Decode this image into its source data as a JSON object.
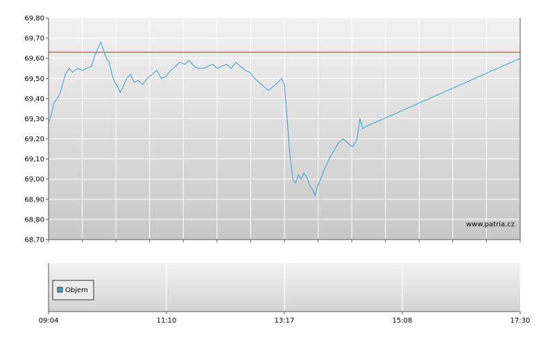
{
  "chart_data": [
    {
      "type": "line",
      "title": "",
      "xlabel": "",
      "ylabel": "",
      "ylim": [
        68.7,
        69.8
      ],
      "xlim": [
        "09:04",
        "17:30"
      ],
      "y_ticks": [
        "69,80",
        "69,70",
        "69,60",
        "69,50",
        "69,40",
        "69,30",
        "69,20",
        "69,10",
        "69,00",
        "68,90",
        "68,80",
        "68,70"
      ],
      "y_tick_values": [
        69.8,
        69.7,
        69.6,
        69.5,
        69.4,
        69.3,
        69.2,
        69.1,
        69.0,
        68.9,
        68.8,
        68.7
      ],
      "reference_line": {
        "value": 69.63,
        "color": "#e05050"
      },
      "watermark": "www.patria.cz",
      "grid": true,
      "series": [
        {
          "color": "#4aa3cc",
          "points": [
            [
              "09:04",
              69.28
            ],
            [
              "09:07",
              69.32
            ],
            [
              "09:10",
              69.38
            ],
            [
              "09:13",
              69.4
            ],
            [
              "09:16",
              69.42
            ],
            [
              "09:19",
              69.47
            ],
            [
              "09:22",
              69.52
            ],
            [
              "09:26",
              69.55
            ],
            [
              "09:30",
              69.53
            ],
            [
              "09:35",
              69.55
            ],
            [
              "09:40",
              69.54
            ],
            [
              "09:45",
              69.55
            ],
            [
              "09:50",
              69.56
            ],
            [
              "09:54",
              69.62
            ],
            [
              "09:58",
              69.66
            ],
            [
              "10:00",
              69.68
            ],
            [
              "10:03",
              69.64
            ],
            [
              "10:06",
              69.6
            ],
            [
              "10:09",
              69.58
            ],
            [
              "10:12",
              69.52
            ],
            [
              "10:15",
              69.48
            ],
            [
              "10:18",
              69.46
            ],
            [
              "10:21",
              69.43
            ],
            [
              "10:24",
              69.46
            ],
            [
              "10:28",
              69.5
            ],
            [
              "10:32",
              69.52
            ],
            [
              "10:36",
              69.48
            ],
            [
              "10:40",
              69.49
            ],
            [
              "10:45",
              69.47
            ],
            [
              "10:50",
              69.5
            ],
            [
              "10:55",
              69.52
            ],
            [
              "11:00",
              69.54
            ],
            [
              "11:05",
              69.5
            ],
            [
              "11:10",
              69.51
            ],
            [
              "11:15",
              69.54
            ],
            [
              "11:20",
              69.56
            ],
            [
              "11:25",
              69.58
            ],
            [
              "11:30",
              69.57
            ],
            [
              "11:35",
              69.59
            ],
            [
              "11:40",
              69.56
            ],
            [
              "11:45",
              69.55
            ],
            [
              "11:50",
              69.55
            ],
            [
              "11:55",
              69.56
            ],
            [
              "12:00",
              69.57
            ],
            [
              "12:05",
              69.55
            ],
            [
              "12:10",
              69.56
            ],
            [
              "12:15",
              69.57
            ],
            [
              "12:20",
              69.55
            ],
            [
              "12:25",
              69.58
            ],
            [
              "12:30",
              69.56
            ],
            [
              "12:35",
              69.54
            ],
            [
              "12:40",
              69.53
            ],
            [
              "12:45",
              69.5
            ],
            [
              "12:50",
              69.48
            ],
            [
              "12:55",
              69.46
            ],
            [
              "13:00",
              69.44
            ],
            [
              "13:05",
              69.46
            ],
            [
              "13:10",
              69.48
            ],
            [
              "13:14",
              69.5
            ],
            [
              "13:17",
              69.47
            ],
            [
              "13:20",
              69.3
            ],
            [
              "13:23",
              69.12
            ],
            [
              "13:26",
              69.0
            ],
            [
              "13:29",
              68.98
            ],
            [
              "13:32",
              69.02
            ],
            [
              "13:35",
              69.0
            ],
            [
              "13:38",
              69.03
            ],
            [
              "13:41",
              69.01
            ],
            [
              "13:44",
              68.97
            ],
            [
              "13:47",
              68.95
            ],
            [
              "13:50",
              68.92
            ],
            [
              "13:53",
              68.97
            ],
            [
              "13:56",
              69.0
            ],
            [
              "14:00",
              69.05
            ],
            [
              "14:05",
              69.1
            ],
            [
              "14:10",
              69.14
            ],
            [
              "14:15",
              69.18
            ],
            [
              "14:20",
              69.2
            ],
            [
              "14:25",
              69.18
            ],
            [
              "14:30",
              69.16
            ],
            [
              "14:35",
              69.2
            ],
            [
              "14:38",
              69.3
            ],
            [
              "14:41",
              69.25
            ],
            [
              "14:44",
              69.26
            ],
            [
              "17:30",
              69.6
            ]
          ]
        }
      ]
    },
    {
      "type": "bar",
      "title": "",
      "legend": [
        "Objem"
      ],
      "legend_color": "#4aa3cc",
      "legend_placement": "top-left",
      "x_ticks": [
        "09:04",
        "11:10",
        "13:17",
        "15:08",
        "17:30"
      ],
      "grid": true
    }
  ]
}
